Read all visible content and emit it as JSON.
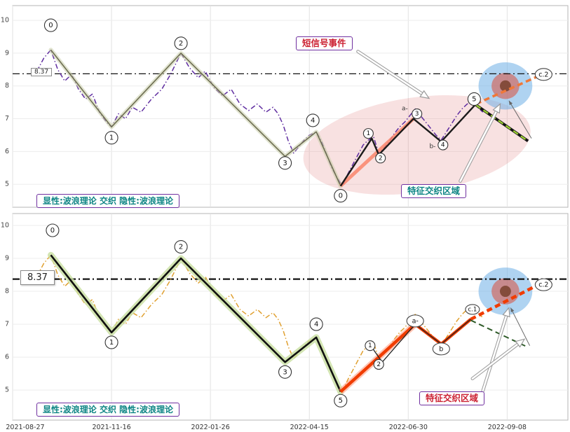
{
  "annotations": {
    "signal_event": "短信号事件",
    "weave_region": "特征交织区域",
    "theory_legend": "显性:波浪理论 交织 隐性:波浪理论",
    "hline_label": "8.37"
  },
  "chart_data": {
    "type": "line",
    "title": "",
    "xlim": [
      0,
      320
    ],
    "x_ticks": [
      0,
      57,
      114,
      171,
      228,
      285
    ],
    "x_tick_labels": [
      "2021-08-27",
      "2021-11-16",
      "2022-01-26",
      "2022-04-15",
      "2022-06-30",
      "2022-09-08"
    ],
    "y_ticks": [
      5,
      6,
      7,
      8,
      9,
      10
    ],
    "hline": 8.37,
    "price": {
      "x": [
        14,
        18,
        22,
        26,
        30,
        34,
        38,
        42,
        46,
        50,
        54,
        57,
        61,
        65,
        69,
        74,
        80,
        86,
        91,
        97,
        102,
        107,
        111,
        116,
        121,
        126,
        131,
        136,
        141,
        146,
        150,
        153,
        156,
        159,
        162,
        165,
        168,
        171,
        175,
        178,
        181,
        184,
        187,
        190,
        193,
        196,
        199,
        202,
        205,
        208,
        211,
        214,
        217,
        220,
        223,
        226,
        229,
        232,
        235,
        238,
        241,
        244,
        247,
        250,
        253,
        256,
        259,
        262,
        265,
        268,
        271
      ],
      "y": [
        8.45,
        8.85,
        9.1,
        8.5,
        8.15,
        8.35,
        7.9,
        7.6,
        7.75,
        7.2,
        6.9,
        6.75,
        7.15,
        7.0,
        7.35,
        7.2,
        7.6,
        7.9,
        8.35,
        9.0,
        8.55,
        8.25,
        8.45,
        7.95,
        7.7,
        7.9,
        7.45,
        7.25,
        7.45,
        7.2,
        7.35,
        7.15,
        6.8,
        6.3,
        5.95,
        6.15,
        6.35,
        6.5,
        6.6,
        6.3,
        5.9,
        5.5,
        5.2,
        4.95,
        5.3,
        5.6,
        5.9,
        6.2,
        6.35,
        6.45,
        5.95,
        6.1,
        6.3,
        6.55,
        6.75,
        6.9,
        7.1,
        7.3,
        7.1,
        6.9,
        6.7,
        6.5,
        6.35,
        6.6,
        6.85,
        7.1,
        7.3,
        7.45,
        7.5,
        7.35,
        7.2
      ]
    },
    "main_wave": {
      "x": [
        22,
        57,
        97,
        157,
        175,
        189
      ],
      "y": [
        9.1,
        6.75,
        9.0,
        5.85,
        6.6,
        4.95
      ],
      "labels": [
        "0",
        "1",
        "2",
        "3",
        "4",
        "5"
      ]
    },
    "panels": [
      {
        "id": "top-panel-explicit-weave",
        "rect": [
          18,
          8,
          792,
          288
        ],
        "ylim": [
          4.3,
          10.45
        ],
        "show_x_labels": false,
        "hline_width": 1.2,
        "regions": [
          {
            "cx": 233,
            "cy": 6.2,
            "rx": 66,
            "ry": 1.45,
            "rot": -8,
            "fill": "rgba(225,120,120,0.22)"
          },
          {
            "cx": 284,
            "cy": 8.0,
            "rx": 15.5,
            "ry": 0.72,
            "rot": 0,
            "fill": "rgba(110,175,230,0.55)"
          },
          {
            "cx": 284,
            "cy": 8.0,
            "rx": 8,
            "ry": 0.4,
            "rot": 0,
            "fill": "rgba(215,90,75,0.6)"
          },
          {
            "cx": 284,
            "cy": 8.0,
            "rx": 3.2,
            "ry": 0.17,
            "rot": 0,
            "fill": "rgba(120,65,45,0.85)"
          }
        ],
        "series": [
          {
            "name": "price-implicit",
            "use": "price",
            "color": "#5f2da0",
            "width": 1.5,
            "dash": "dashdot"
          },
          {
            "name": "main-wave",
            "use": "main_wave",
            "color": "#6e6e52",
            "width": 1.6,
            "halo": {
              "color": "rgba(200,205,170,0.55)",
              "width": 6
            }
          },
          {
            "name": "fan-line",
            "points": [
              [
                189,
                4.95
              ],
              [
                231,
                7.0
              ]
            ],
            "color": "rgba(250,128,100,0.8)",
            "width": 5
          },
          {
            "name": "wave2",
            "points": [
              [
                189,
                4.95
              ],
              [
                207,
                6.4
              ],
              [
                211,
                5.9
              ],
              [
                231,
                7.0
              ],
              [
                247,
                6.3
              ],
              [
                267,
                7.45
              ]
            ],
            "color": "#1a1a1a",
            "width": 2.4
          },
          {
            "name": "projection-c2",
            "points": [
              [
                267,
                7.45
              ],
              [
                303,
                8.3
              ]
            ],
            "color": "#f07838",
            "width": 3.5,
            "dash": "dash"
          },
          {
            "name": "decline-base",
            "points": [
              [
                267,
                7.42
              ],
              [
                297,
                6.32
              ]
            ],
            "color": "#141414",
            "width": 4
          },
          {
            "name": "decline-dash",
            "points": [
              [
                267,
                7.42
              ],
              [
                297,
                6.32
              ]
            ],
            "color": "#9acd32",
            "width": 2.4,
            "dash": "dash"
          }
        ],
        "arrows": [
          {
            "from": [
              199,
              9.05
            ],
            "to": [
              240,
              7.62
            ],
            "style": "white"
          },
          {
            "from": [
              258,
              5.1
            ],
            "to": [
              281,
              7.45
            ],
            "style": "white"
          },
          {
            "from": [
              299,
              6.4
            ],
            "to": [
              286,
              7.55
            ],
            "style": "thin"
          }
        ],
        "labels": [
          {
            "t": 22,
            "v": 9.85,
            "text": "0",
            "style": "circle"
          },
          {
            "t": 57,
            "v": 6.42,
            "text": "1",
            "style": "circle"
          },
          {
            "t": 97,
            "v": 9.3,
            "text": "2",
            "style": "circle"
          },
          {
            "t": 157,
            "v": 5.65,
            "text": "3",
            "style": "circle"
          },
          {
            "t": 173,
            "v": 6.95,
            "text": "4",
            "style": "circle"
          },
          {
            "t": 189,
            "v": 4.65,
            "text": "0",
            "style": "circle"
          },
          {
            "t": 205,
            "v": 6.55,
            "text": "1",
            "style": "circle-sm"
          },
          {
            "t": 212,
            "v": 5.8,
            "text": "2",
            "style": "circle-sm"
          },
          {
            "t": 226,
            "v": 7.3,
            "text": "a-",
            "style": "text"
          },
          {
            "t": 233,
            "v": 7.15,
            "text": "3",
            "style": "circle-sm"
          },
          {
            "t": 242,
            "v": 6.15,
            "text": "b-",
            "style": "text"
          },
          {
            "t": 248,
            "v": 6.2,
            "text": "4",
            "style": "circle-sm"
          },
          {
            "t": 266,
            "v": 7.6,
            "text": "5",
            "style": "circle"
          },
          {
            "t": 306,
            "v": 8.35,
            "text": "c.2",
            "style": "pill"
          }
        ]
      },
      {
        "id": "bottom-panel-implicit-weave",
        "rect": [
          18,
          305,
          792,
          295
        ],
        "ylim": [
          4.09,
          10.36
        ],
        "show_x_labels": true,
        "hline_width": 2.2,
        "regions": [
          {
            "cx": 284,
            "cy": 8.0,
            "rx": 15.5,
            "ry": 0.72,
            "rot": 0,
            "fill": "rgba(110,175,230,0.55)"
          },
          {
            "cx": 284,
            "cy": 8.0,
            "rx": 8,
            "ry": 0.4,
            "rot": 0,
            "fill": "rgba(215,90,75,0.6)"
          },
          {
            "cx": 284,
            "cy": 8.0,
            "rx": 3.2,
            "ry": 0.17,
            "rot": 0,
            "fill": "rgba(120,65,45,0.85)"
          }
        ],
        "series": [
          {
            "name": "price-explicit",
            "use": "price",
            "color": "#e0a030",
            "width": 1.5,
            "dash": "dashdot"
          },
          {
            "name": "main-wave",
            "use": "main_wave",
            "color": "#101010",
            "width": 2.6,
            "halo": {
              "color": "rgba(200,222,160,0.8)",
              "width": 9
            }
          },
          {
            "name": "fan-halo",
            "points": [
              [
                189,
                4.95
              ],
              [
                232,
                7.0
              ]
            ],
            "color": "rgba(255,150,120,0.55)",
            "width": 9
          },
          {
            "name": "wave2",
            "points": [
              [
                189,
                4.95
              ],
              [
                232,
                7.0
              ],
              [
                247,
                6.4
              ],
              [
                264,
                7.15
              ]
            ],
            "color": "#f03c00",
            "width": 4.5
          },
          {
            "name": "wave2-thin",
            "points": [
              [
                207,
                6.3
              ],
              [
                213,
                5.85
              ],
              [
                232,
                7.0
              ],
              [
                247,
                6.4
              ],
              [
                264,
                7.15
              ]
            ],
            "color": "#222222",
            "width": 1.3
          },
          {
            "name": "projection-c2",
            "points": [
              [
                264,
                7.15
              ],
              [
                303,
                8.2
              ]
            ],
            "color": "#f03c00",
            "width": 4.5,
            "dash": "dash"
          },
          {
            "name": "decline-dash",
            "points": [
              [
                264,
                7.12
              ],
              [
                297,
                6.3
              ]
            ],
            "color": "#2d5a27",
            "width": 2,
            "dash": "dash"
          }
        ],
        "arrows": [
          {
            "from": [
              271,
              4.98
            ],
            "to": [
              286,
              7.5
            ],
            "style": "white"
          },
          {
            "from": [
              265,
              5.35
            ],
            "to": [
              295,
              6.55
            ],
            "style": "white"
          },
          {
            "from": [
              298,
              6.35
            ],
            "to": [
              287,
              7.5
            ],
            "style": "thin"
          }
        ],
        "labels": [
          {
            "t": 23,
            "v": 9.85,
            "text": "0",
            "style": "circle"
          },
          {
            "t": 57,
            "v": 6.45,
            "text": "1",
            "style": "circle"
          },
          {
            "t": 97,
            "v": 9.35,
            "text": "2",
            "style": "circle"
          },
          {
            "t": 157,
            "v": 5.55,
            "text": "3",
            "style": "circle"
          },
          {
            "t": 175,
            "v": 7.0,
            "text": "4",
            "style": "circle"
          },
          {
            "t": 189,
            "v": 4.68,
            "text": "5",
            "style": "circle"
          },
          {
            "t": 206,
            "v": 6.35,
            "text": "1",
            "style": "circle-sm"
          },
          {
            "t": 211,
            "v": 5.78,
            "text": "2",
            "style": "circle-sm"
          },
          {
            "t": 232,
            "v": 7.1,
            "text": "a-",
            "style": "pill"
          },
          {
            "t": 247,
            "v": 6.25,
            "text": "b",
            "style": "pill"
          },
          {
            "t": 265,
            "v": 7.45,
            "text": "c.1",
            "style": "pill-sm"
          },
          {
            "t": 306,
            "v": 8.2,
            "text": "c.2",
            "style": "pill"
          }
        ]
      }
    ]
  }
}
